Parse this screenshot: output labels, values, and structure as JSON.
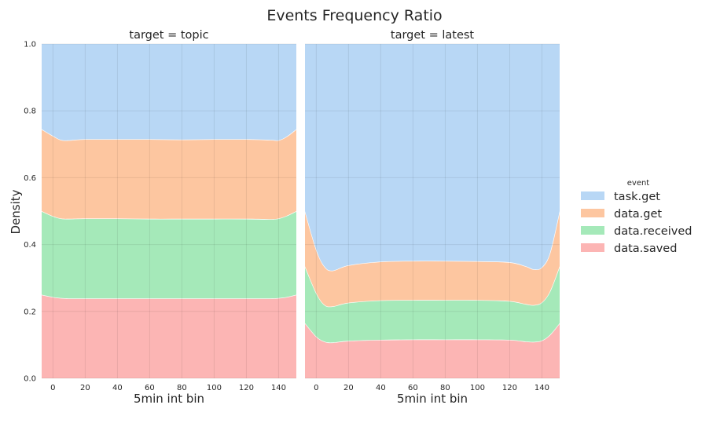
{
  "chart_data": {
    "type": "area",
    "title": "Events Frequency Ratio",
    "ylabel": "Density",
    "ylim": [
      0,
      1
    ],
    "yticks": [
      "0.0",
      "0.2",
      "0.4",
      "0.6",
      "0.8",
      "1.0"
    ],
    "xlim": [
      -7,
      151
    ],
    "xticks": [
      "0",
      "20",
      "40",
      "60",
      "80",
      "100",
      "120",
      "140"
    ],
    "grid": true,
    "legend_placement": "right",
    "legend": {
      "title": "event",
      "entries": [
        {
          "name": "task.get",
          "color": "#b8d7f5"
        },
        {
          "name": "data.get",
          "color": "#fdc6a0"
        },
        {
          "name": "data.received",
          "color": "#a5e9b9"
        },
        {
          "name": "data.saved",
          "color": "#fcb5b4"
        }
      ]
    },
    "series_order_bottom_to_top": [
      "data.saved",
      "data.received",
      "data.get",
      "task.get"
    ],
    "panels": [
      {
        "title": "target = topic",
        "xlabel": "5min int bin",
        "x": [
          -7,
          0,
          5,
          10,
          20,
          40,
          60,
          80,
          100,
          120,
          135,
          140,
          145,
          151
        ],
        "cumulative_boundaries": {
          "data.saved_top": [
            0.25,
            0.243,
            0.24,
            0.239,
            0.239,
            0.239,
            0.239,
            0.239,
            0.239,
            0.239,
            0.239,
            0.24,
            0.243,
            0.25
          ],
          "data.received_top": [
            0.5,
            0.485,
            0.478,
            0.477,
            0.478,
            0.478,
            0.477,
            0.477,
            0.477,
            0.477,
            0.476,
            0.478,
            0.486,
            0.5
          ],
          "data.get_top": [
            0.745,
            0.725,
            0.713,
            0.712,
            0.715,
            0.715,
            0.715,
            0.714,
            0.715,
            0.715,
            0.713,
            0.712,
            0.723,
            0.745
          ],
          "task.get_top": [
            1,
            1,
            1,
            1,
            1,
            1,
            1,
            1,
            1,
            1,
            1,
            1,
            1,
            1
          ]
        }
      },
      {
        "title": "target = latest",
        "xlabel": "5min int bin",
        "x": [
          -7,
          0,
          5,
          10,
          20,
          40,
          60,
          80,
          100,
          120,
          130,
          135,
          140,
          145,
          151
        ],
        "cumulative_boundaries": {
          "data.saved_top": [
            0.165,
            0.125,
            0.11,
            0.107,
            0.112,
            0.115,
            0.116,
            0.116,
            0.116,
            0.115,
            0.11,
            0.109,
            0.113,
            0.13,
            0.165
          ],
          "data.received_top": [
            0.335,
            0.255,
            0.22,
            0.215,
            0.226,
            0.233,
            0.234,
            0.234,
            0.234,
            0.231,
            0.222,
            0.219,
            0.227,
            0.26,
            0.335
          ],
          "data.get_top": [
            0.5,
            0.385,
            0.335,
            0.322,
            0.338,
            0.349,
            0.351,
            0.351,
            0.35,
            0.347,
            0.335,
            0.326,
            0.332,
            0.375,
            0.5
          ],
          "task.get_top": [
            1,
            1,
            1,
            1,
            1,
            1,
            1,
            1,
            1,
            1,
            1,
            1,
            1,
            1,
            1
          ]
        }
      }
    ]
  }
}
